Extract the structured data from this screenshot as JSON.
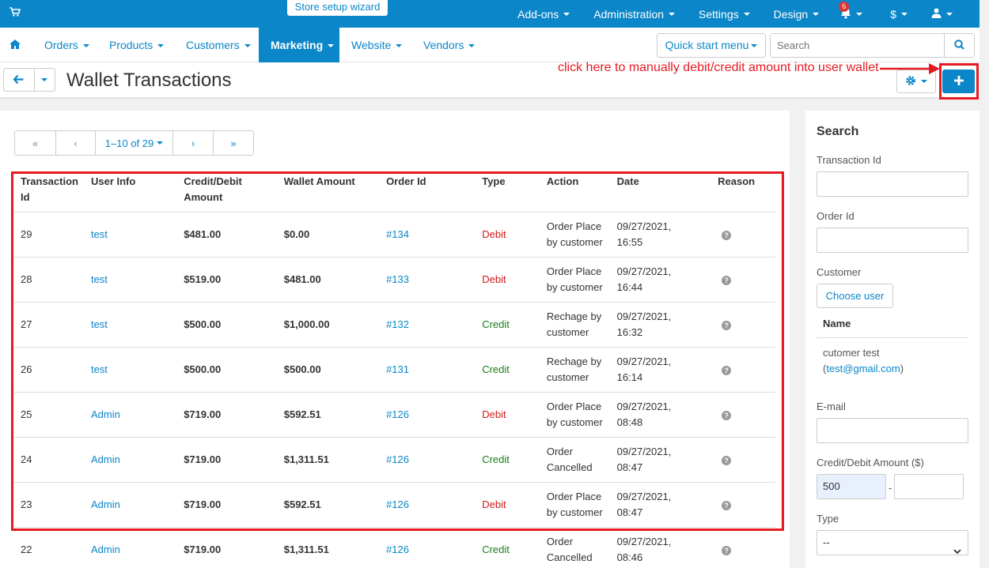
{
  "topbar": {
    "wizard": "Store setup wizard",
    "items": [
      {
        "label": "Add-ons"
      },
      {
        "label": "Administration"
      },
      {
        "label": "Settings"
      },
      {
        "label": "Design"
      }
    ],
    "notifications_count": "6",
    "currency": "$"
  },
  "mainnav": {
    "items": [
      {
        "label": "Orders"
      },
      {
        "label": "Products"
      },
      {
        "label": "Customers"
      },
      {
        "label": "Marketing"
      },
      {
        "label": "Website"
      },
      {
        "label": "Vendors"
      }
    ],
    "active_item": "Marketing",
    "quick_start": "Quick start menu",
    "search_placeholder": "Search"
  },
  "page": {
    "title": "Wallet Transactions",
    "annotation": "click here to manually debit/credit amount into user wallet"
  },
  "pager": {
    "first": "«",
    "prev": "‹",
    "range": "1–10 of 29",
    "next": "›",
    "last": "»"
  },
  "table": {
    "headers": {
      "id_1": "Transaction",
      "id_2": "Id",
      "user": "User Info",
      "amount_1": "Credit/Debit",
      "amount_2": "Amount",
      "wallet": "Wallet Amount",
      "order": "Order Id",
      "type": "Type",
      "action": "Action",
      "date": "Date",
      "reason": "Reason"
    },
    "rows": [
      {
        "id": "29",
        "user": "test",
        "amount": "$481.00",
        "wallet": "$0.00",
        "order": "#134",
        "type": "Debit",
        "action_1": "Order Place",
        "action_2": "by customer",
        "date_1": "09/27/2021,",
        "date_2": "16:55"
      },
      {
        "id": "28",
        "user": "test",
        "amount": "$519.00",
        "wallet": "$481.00",
        "order": "#133",
        "type": "Debit",
        "action_1": "Order Place",
        "action_2": "by customer",
        "date_1": "09/27/2021,",
        "date_2": "16:44"
      },
      {
        "id": "27",
        "user": "test",
        "amount": "$500.00",
        "wallet": "$1,000.00",
        "order": "#132",
        "type": "Credit",
        "action_1": "Rechage by",
        "action_2": "customer",
        "date_1": "09/27/2021,",
        "date_2": "16:32"
      },
      {
        "id": "26",
        "user": "test",
        "amount": "$500.00",
        "wallet": "$500.00",
        "order": "#131",
        "type": "Credit",
        "action_1": "Rechage by",
        "action_2": "customer",
        "date_1": "09/27/2021,",
        "date_2": "16:14"
      },
      {
        "id": "25",
        "user": "Admin",
        "amount": "$719.00",
        "wallet": "$592.51",
        "order": "#126",
        "type": "Debit",
        "action_1": "Order Place",
        "action_2": "by customer",
        "date_1": "09/27/2021,",
        "date_2": "08:48"
      },
      {
        "id": "24",
        "user": "Admin",
        "amount": "$719.00",
        "wallet": "$1,311.51",
        "order": "#126",
        "type": "Credit",
        "action_1": "Order",
        "action_2": "Cancelled",
        "date_1": "09/27/2021,",
        "date_2": "08:47"
      },
      {
        "id": "23",
        "user": "Admin",
        "amount": "$719.00",
        "wallet": "$592.51",
        "order": "#126",
        "type": "Debit",
        "action_1": "Order Place",
        "action_2": "by customer",
        "date_1": "09/27/2021,",
        "date_2": "08:47"
      },
      {
        "id": "22",
        "user": "Admin",
        "amount": "$719.00",
        "wallet": "$1,311.51",
        "order": "#126",
        "type": "Credit",
        "action_1": "Order",
        "action_2": "Cancelled",
        "date_1": "09/27/2021,",
        "date_2": "08:46"
      }
    ]
  },
  "sidebar": {
    "title": "Search",
    "transaction_id_label": "Transaction Id",
    "order_id_label": "Order Id",
    "customer_label": "Customer",
    "choose_user": "Choose user",
    "name_header": "Name",
    "customer_name": "cutomer test",
    "customer_email_open": "(",
    "customer_email": "test@gmail.com",
    "customer_email_close": ")",
    "email_label": "E-mail",
    "amount_label": "Credit/Debit Amount ($)",
    "amount_from": "500",
    "amount_sep": "-",
    "type_label": "Type",
    "type_value": "--"
  },
  "colors": {
    "brand": "#0b86c8",
    "debit": "#d01b1b",
    "credit": "#1b7a1b",
    "annotation": "#e51b24"
  }
}
